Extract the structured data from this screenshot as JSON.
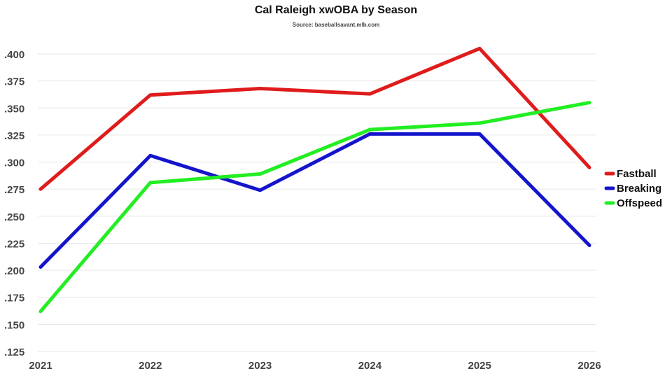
{
  "chart_data": {
    "type": "line",
    "title": "Cal Raleigh xwOBA by Season",
    "subtitle": "Source: baseballsavant.mlb.com",
    "xlabel": "",
    "ylabel": "",
    "x": [
      "2021",
      "2022",
      "2023",
      "2024",
      "2025",
      "2026"
    ],
    "ylim": [
      0.125,
      0.4
    ],
    "yticks": [
      ".400",
      ".375",
      ".350",
      ".325",
      ".300",
      ".275",
      ".250",
      ".225",
      ".200",
      ".175",
      ".150",
      ".125"
    ],
    "ytick_values": [
      0.4,
      0.375,
      0.35,
      0.325,
      0.3,
      0.275,
      0.25,
      0.225,
      0.2,
      0.175,
      0.15,
      0.125
    ],
    "grid": true,
    "legend_position": "right",
    "series": [
      {
        "name": "Fastball",
        "color": "#e01b1b",
        "values": [
          0.275,
          0.362,
          0.368,
          0.363,
          0.405,
          0.295
        ]
      },
      {
        "name": "Breaking",
        "color": "#1414cc",
        "values": [
          0.203,
          0.306,
          0.274,
          0.326,
          0.326,
          0.223
        ]
      },
      {
        "name": "Offspeed",
        "color": "#22ee22",
        "values": [
          0.162,
          0.281,
          0.289,
          0.33,
          0.336,
          0.355
        ]
      }
    ]
  }
}
